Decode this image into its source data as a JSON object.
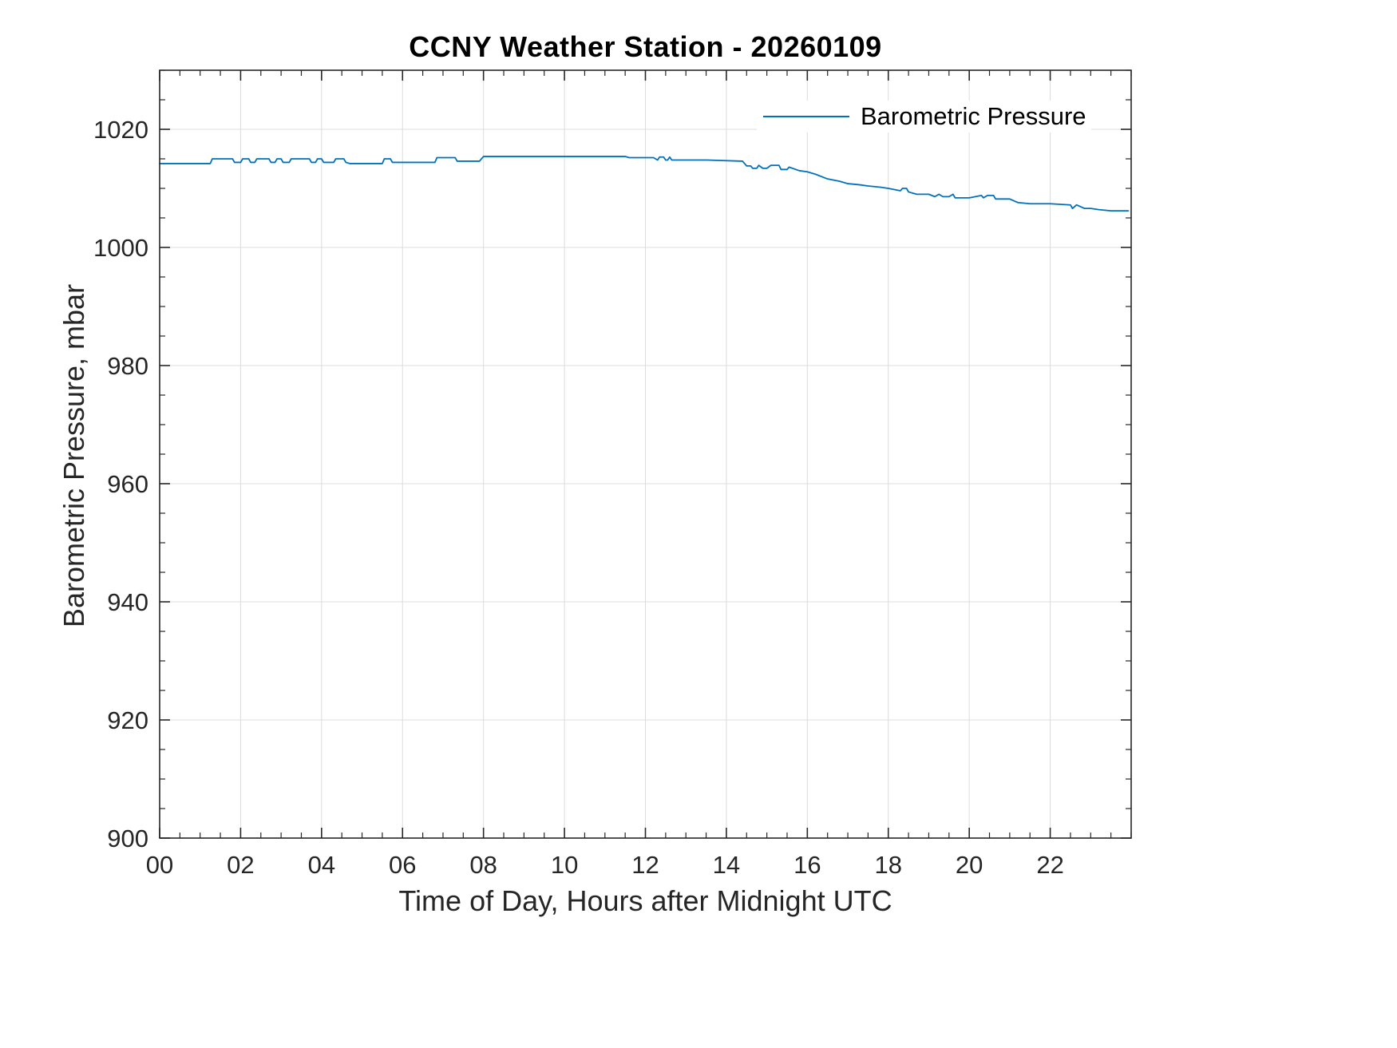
{
  "chart_data": {
    "type": "line",
    "title": "CCNY Weather Station - 20260109",
    "xlabel": "Time of Day, Hours after Midnight UTC",
    "ylabel": "Barometric Pressure, mbar",
    "xlim": [
      0,
      24
    ],
    "ylim": [
      900,
      1030
    ],
    "x_tick_values": [
      0,
      2,
      4,
      6,
      8,
      10,
      12,
      14,
      16,
      18,
      20,
      22
    ],
    "x_tick_labels": [
      "00",
      "02",
      "04",
      "06",
      "08",
      "10",
      "12",
      "14",
      "16",
      "18",
      "20",
      "22"
    ],
    "y_tick_values": [
      900,
      920,
      940,
      960,
      980,
      1000,
      1020
    ],
    "y_tick_labels": [
      "900",
      "920",
      "940",
      "960",
      "980",
      "1000",
      "1020"
    ],
    "x_minor_step": 0.5,
    "y_minor_step": 5,
    "grid": true,
    "grid_color": "#dcdcdc",
    "axis_color": "#262626",
    "legend": {
      "position": "top-right",
      "label": "Barometric Pressure"
    },
    "series": [
      {
        "name": "Barometric Pressure",
        "color": "#0072BD",
        "points": [
          [
            0.0,
            1014.2
          ],
          [
            1.25,
            1014.2
          ],
          [
            1.3,
            1015.0
          ],
          [
            1.8,
            1015.0
          ],
          [
            1.85,
            1014.4
          ],
          [
            2.0,
            1014.4
          ],
          [
            2.05,
            1015.0
          ],
          [
            2.2,
            1015.0
          ],
          [
            2.25,
            1014.4
          ],
          [
            2.35,
            1014.4
          ],
          [
            2.4,
            1015.0
          ],
          [
            2.7,
            1015.0
          ],
          [
            2.75,
            1014.4
          ],
          [
            2.85,
            1014.4
          ],
          [
            2.9,
            1015.0
          ],
          [
            3.0,
            1015.0
          ],
          [
            3.05,
            1014.4
          ],
          [
            3.2,
            1014.4
          ],
          [
            3.25,
            1015.0
          ],
          [
            3.7,
            1015.0
          ],
          [
            3.75,
            1014.4
          ],
          [
            3.85,
            1014.4
          ],
          [
            3.9,
            1015.0
          ],
          [
            4.0,
            1015.0
          ],
          [
            4.05,
            1014.4
          ],
          [
            4.3,
            1014.4
          ],
          [
            4.35,
            1015.0
          ],
          [
            4.55,
            1015.0
          ],
          [
            4.6,
            1014.4
          ],
          [
            4.7,
            1014.2
          ],
          [
            5.5,
            1014.2
          ],
          [
            5.55,
            1015.0
          ],
          [
            5.7,
            1015.0
          ],
          [
            5.75,
            1014.4
          ],
          [
            6.8,
            1014.4
          ],
          [
            6.85,
            1015.2
          ],
          [
            7.3,
            1015.2
          ],
          [
            7.35,
            1014.6
          ],
          [
            7.9,
            1014.6
          ],
          [
            8.0,
            1015.4
          ],
          [
            11.5,
            1015.4
          ],
          [
            11.6,
            1015.2
          ],
          [
            12.2,
            1015.2
          ],
          [
            12.3,
            1014.8
          ],
          [
            12.35,
            1015.3
          ],
          [
            12.45,
            1015.3
          ],
          [
            12.5,
            1014.8
          ],
          [
            12.55,
            1014.8
          ],
          [
            12.6,
            1015.3
          ],
          [
            12.65,
            1014.8
          ],
          [
            13.5,
            1014.8
          ],
          [
            14.4,
            1014.6
          ],
          [
            14.5,
            1013.8
          ],
          [
            14.6,
            1013.8
          ],
          [
            14.65,
            1013.4
          ],
          [
            14.75,
            1013.4
          ],
          [
            14.8,
            1013.9
          ],
          [
            14.9,
            1013.4
          ],
          [
            15.0,
            1013.4
          ],
          [
            15.1,
            1013.9
          ],
          [
            15.3,
            1013.9
          ],
          [
            15.35,
            1013.2
          ],
          [
            15.5,
            1013.2
          ],
          [
            15.55,
            1013.6
          ],
          [
            15.8,
            1013.0
          ],
          [
            16.0,
            1012.8
          ],
          [
            16.2,
            1012.4
          ],
          [
            16.5,
            1011.6
          ],
          [
            16.8,
            1011.2
          ],
          [
            17.0,
            1010.8
          ],
          [
            17.3,
            1010.6
          ],
          [
            17.5,
            1010.4
          ],
          [
            17.8,
            1010.2
          ],
          [
            18.0,
            1010.0
          ],
          [
            18.3,
            1009.6
          ],
          [
            18.35,
            1010.0
          ],
          [
            18.45,
            1010.0
          ],
          [
            18.5,
            1009.4
          ],
          [
            18.7,
            1009.0
          ],
          [
            19.0,
            1009.0
          ],
          [
            19.15,
            1008.6
          ],
          [
            19.25,
            1009.0
          ],
          [
            19.35,
            1008.6
          ],
          [
            19.5,
            1008.6
          ],
          [
            19.6,
            1009.0
          ],
          [
            19.65,
            1008.4
          ],
          [
            20.0,
            1008.4
          ],
          [
            20.3,
            1008.8
          ],
          [
            20.35,
            1008.4
          ],
          [
            20.45,
            1008.8
          ],
          [
            20.6,
            1008.8
          ],
          [
            20.65,
            1008.2
          ],
          [
            21.0,
            1008.2
          ],
          [
            21.2,
            1007.6
          ],
          [
            21.5,
            1007.4
          ],
          [
            22.0,
            1007.4
          ],
          [
            22.5,
            1007.2
          ],
          [
            22.55,
            1006.6
          ],
          [
            22.65,
            1007.2
          ],
          [
            22.85,
            1006.6
          ],
          [
            23.0,
            1006.6
          ],
          [
            23.2,
            1006.4
          ],
          [
            23.5,
            1006.2
          ],
          [
            23.93,
            1006.2
          ]
        ]
      }
    ]
  }
}
